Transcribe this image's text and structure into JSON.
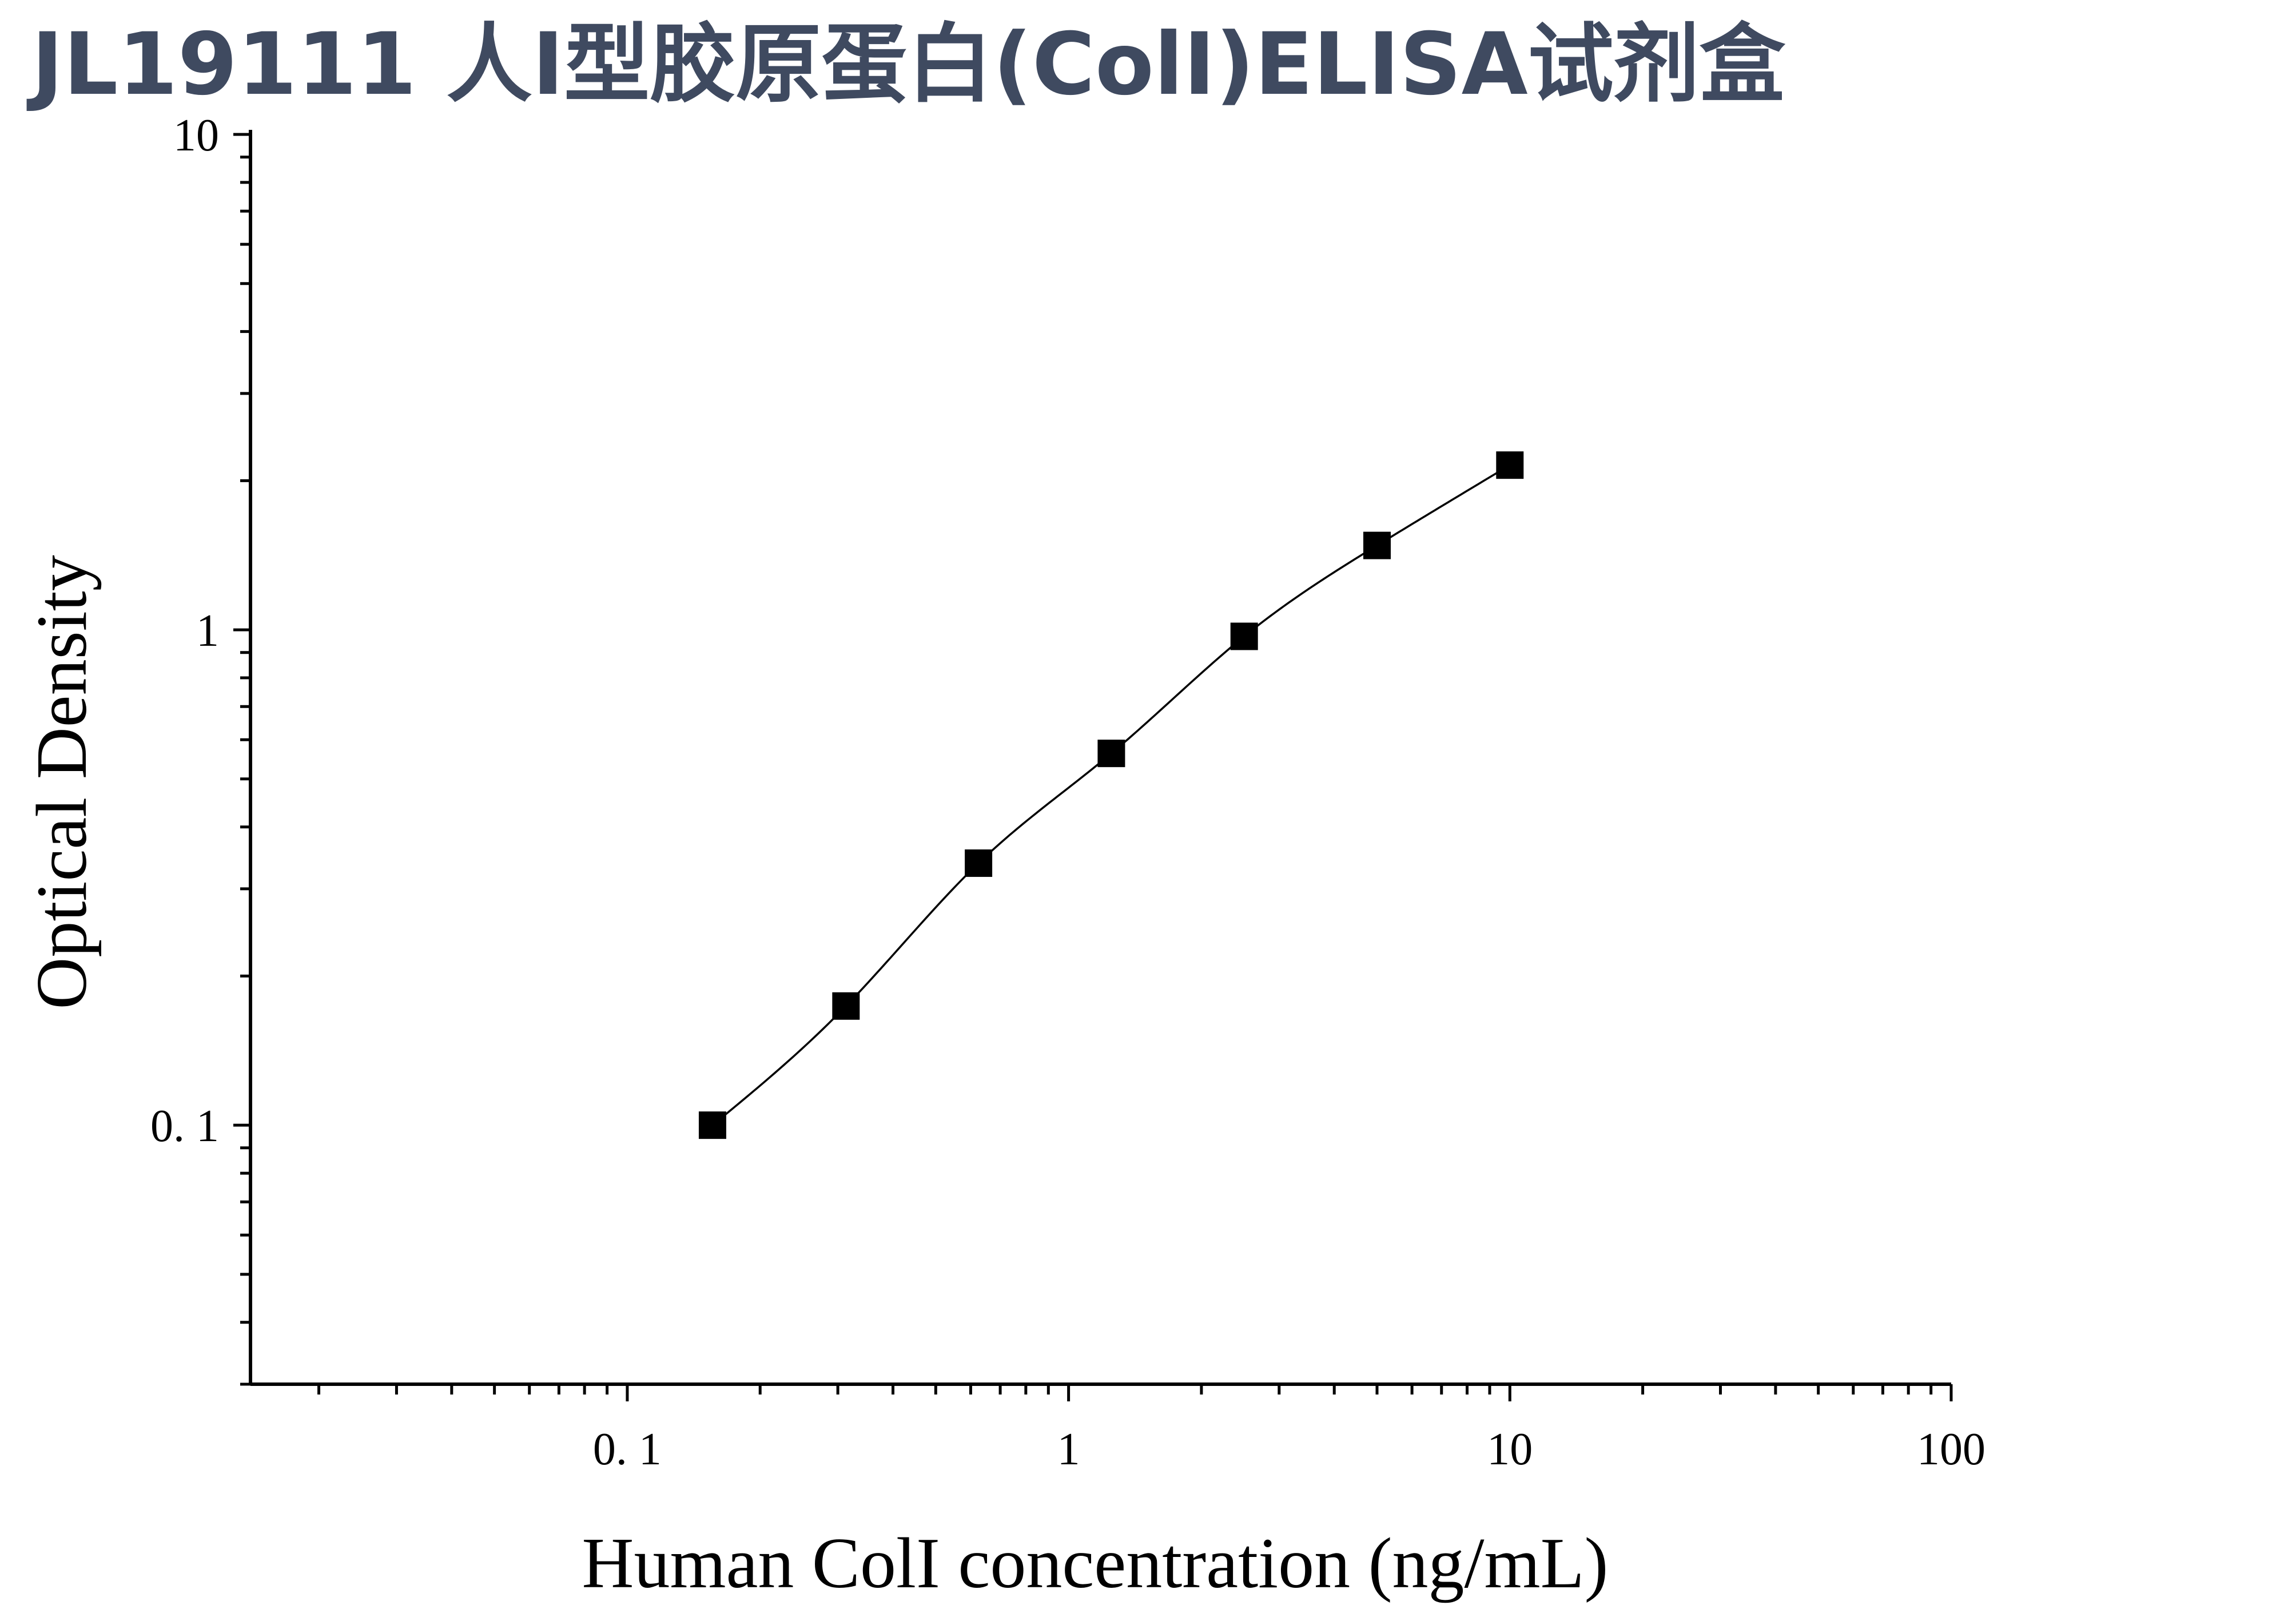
{
  "title": "JL19111 人Ⅰ型胶原蛋白(ColⅠ)ELISA试剂盒",
  "colors": {
    "title": "#3f4a60",
    "axis": "#000000",
    "curve": "#000000",
    "marker": "#000000",
    "background": "#ffffff"
  },
  "chart_data": {
    "type": "scatter",
    "xscale": "log",
    "yscale": "log",
    "xlim": [
      0.014,
      100
    ],
    "ylim": [
      0.03,
      10
    ],
    "xlabel": "Human ColI concentration (ng/mL)",
    "ylabel": "Optical Density",
    "x_tick_labels": [
      {
        "value": 0.1,
        "label": "0. 1"
      },
      {
        "value": 1,
        "label": "1"
      },
      {
        "value": 10,
        "label": "10"
      },
      {
        "value": 100,
        "label": "100"
      }
    ],
    "y_tick_labels": [
      {
        "value": 0.1,
        "label": "0. 1"
      },
      {
        "value": 1,
        "label": "1"
      },
      {
        "value": 10,
        "label": "10"
      }
    ],
    "marker": "square",
    "fit_curve": true,
    "grid": false,
    "legend": false,
    "series": [
      {
        "x": [
          0.156,
          0.313,
          0.625,
          1.25,
          2.5,
          5,
          10
        ],
        "y": [
          0.1,
          0.174,
          0.338,
          0.563,
          0.97,
          1.48,
          2.15
        ]
      }
    ]
  }
}
